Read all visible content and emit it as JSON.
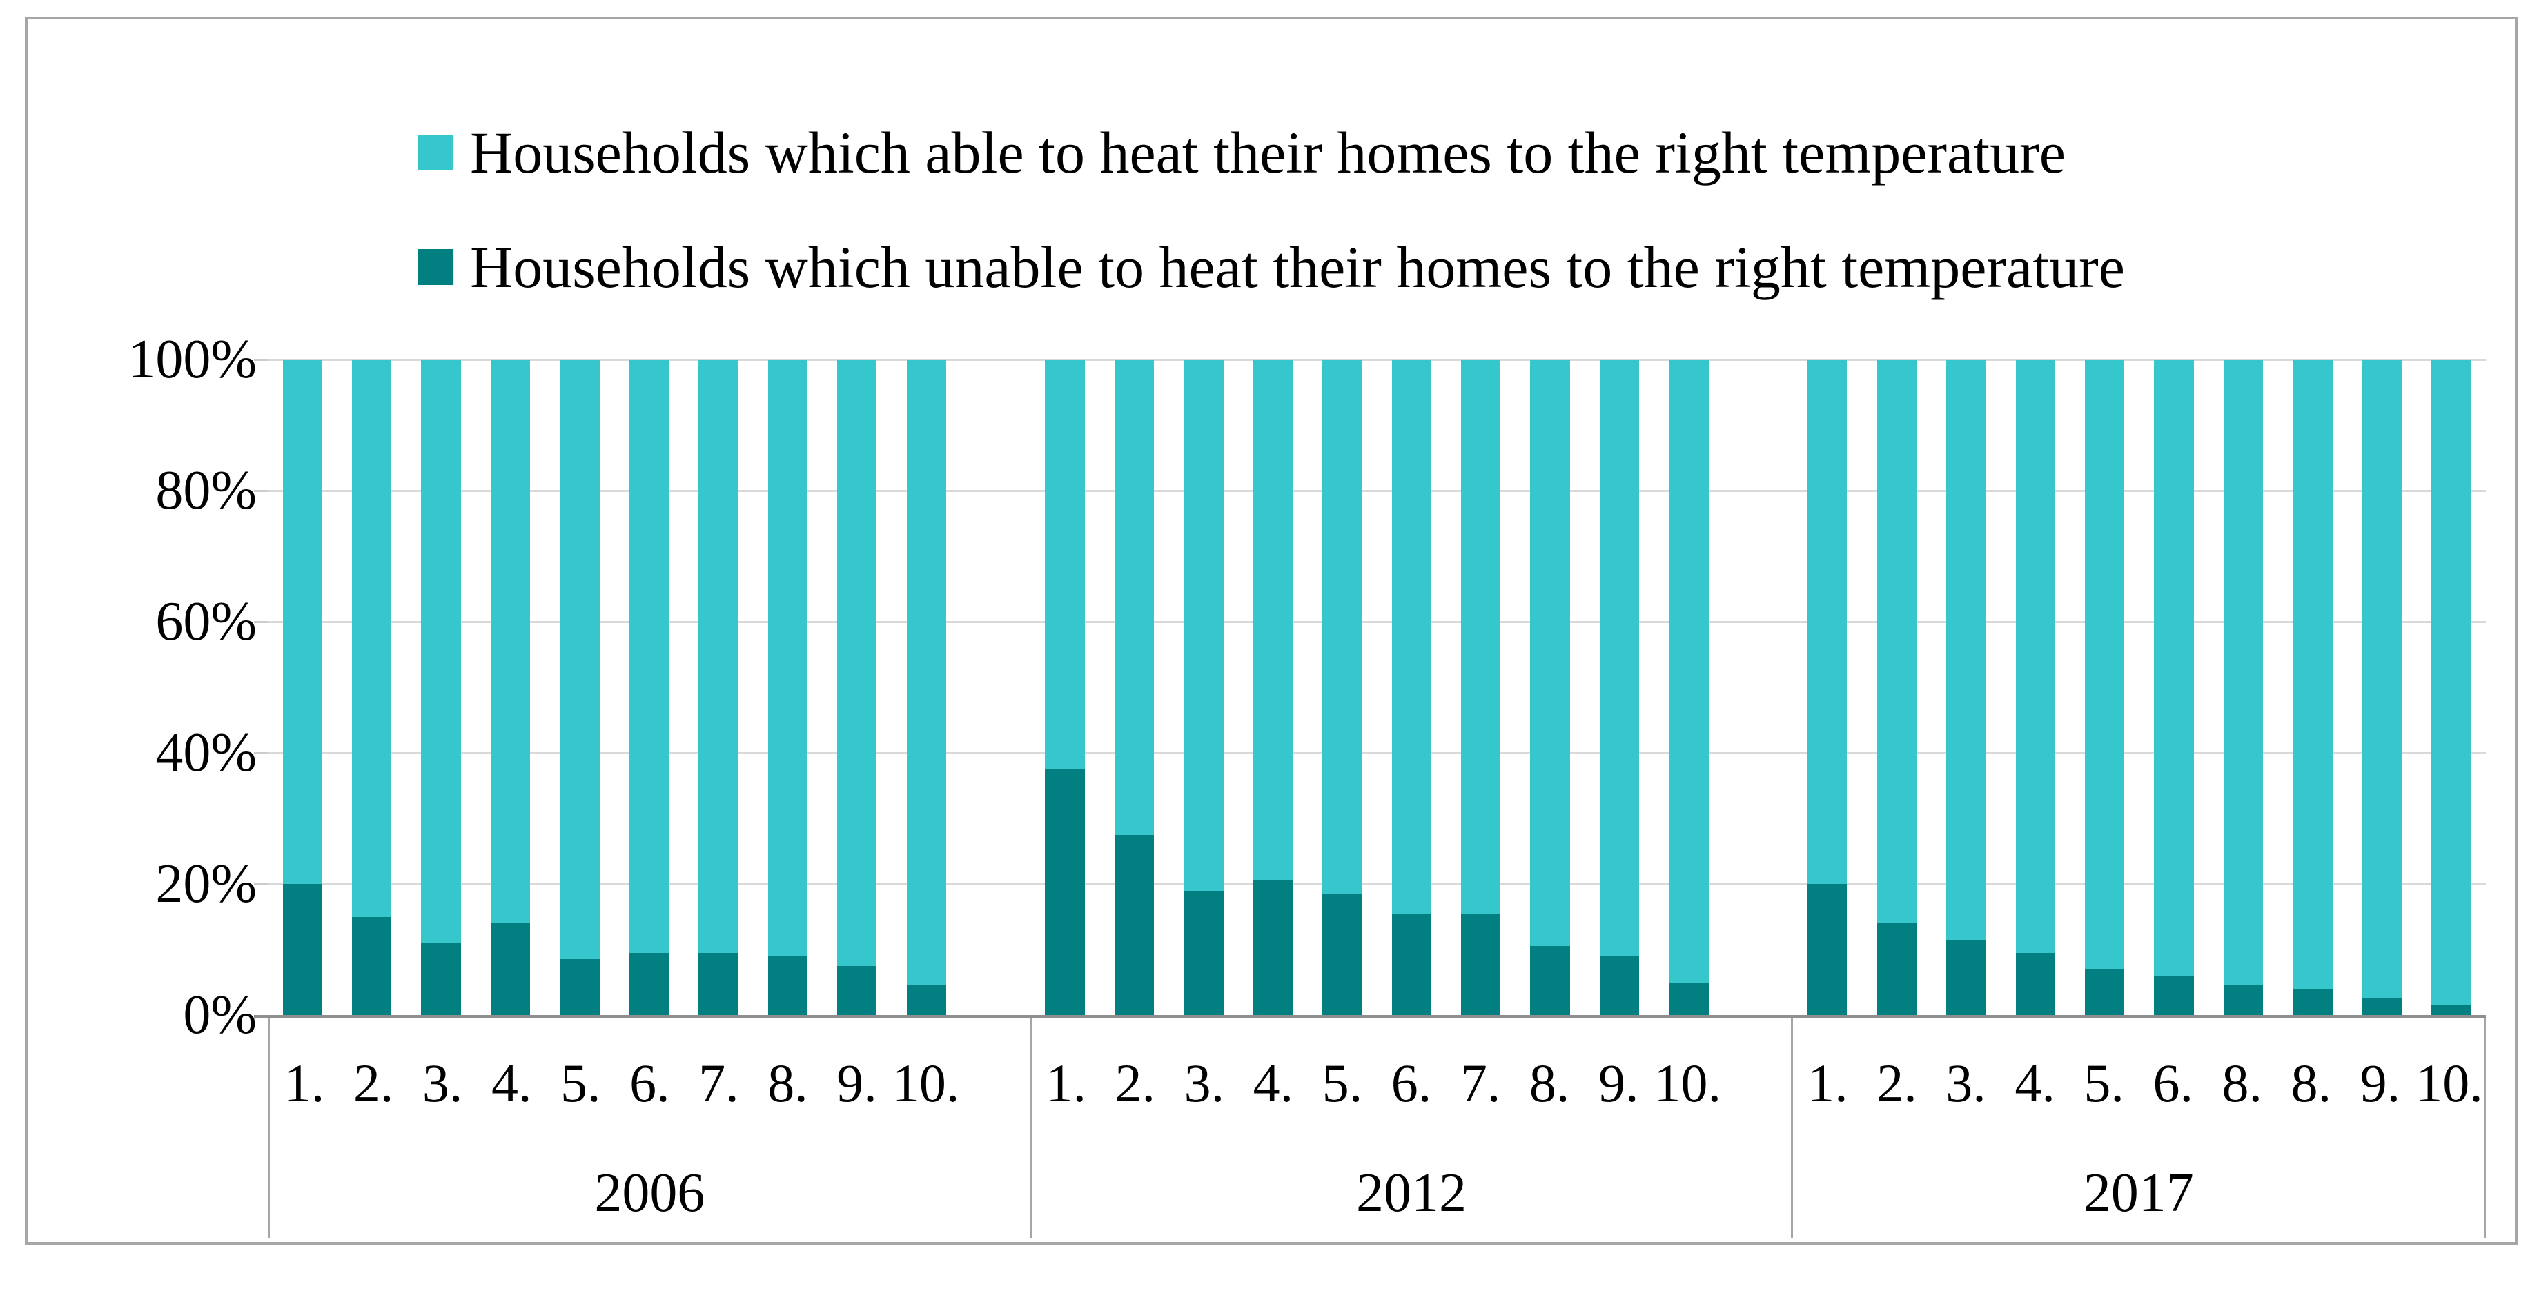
{
  "chart_data": {
    "type": "bar",
    "variant": "stacked-100-percent",
    "title": "",
    "xlabel": "",
    "ylabel": "",
    "unit": "percent",
    "ylim": [
      0,
      100
    ],
    "grid": true,
    "legend_position": "top",
    "y_ticks": [
      "100%",
      "80%",
      "60%",
      "40%",
      "20%",
      "0%"
    ],
    "legend": [
      {
        "label": "Households which able to heat their homes to the right temperature",
        "series": "able",
        "color": "#35c7cc"
      },
      {
        "label": "Households which unable to heat their homes to the right temperature",
        "series": "unable",
        "color": "#027f80"
      }
    ],
    "groups": [
      {
        "year": "2006",
        "categories": [
          "1.",
          "2.",
          "3.",
          "4.",
          "5.",
          "6.",
          "7.",
          "8.",
          "9.",
          "10."
        ],
        "series": [
          {
            "name": "unable",
            "values": [
              20,
              15,
              11,
              14,
              8.5,
              9.5,
              9.5,
              9,
              7.5,
              4.5
            ]
          },
          {
            "name": "able",
            "values": [
              80,
              85,
              89,
              86,
              91.5,
              90.5,
              90.5,
              91,
              92.5,
              95.5
            ]
          }
        ]
      },
      {
        "year": "2012",
        "categories": [
          "1.",
          "2.",
          "3.",
          "4.",
          "5.",
          "6.",
          "7.",
          "8.",
          "9.",
          "10."
        ],
        "series": [
          {
            "name": "unable",
            "values": [
              37.5,
              27.5,
              19,
              20.5,
              18.5,
              15.5,
              15.5,
              10.5,
              9,
              5
            ]
          },
          {
            "name": "able",
            "values": [
              62.5,
              72.5,
              81,
              79.5,
              81.5,
              84.5,
              84.5,
              89.5,
              91,
              95
            ]
          }
        ]
      },
      {
        "year": "2017",
        "categories": [
          "1.",
          "2.",
          "3.",
          "4.",
          "5.",
          "6.",
          "8.",
          "8.",
          "9.",
          "10."
        ],
        "series": [
          {
            "name": "unable",
            "values": [
              20,
              14,
              11.5,
              9.5,
              7,
              6,
              4.5,
              4,
              2.5,
              1.5
            ]
          },
          {
            "name": "able",
            "values": [
              80,
              86,
              88.5,
              90.5,
              93,
              94,
              95.5,
              96,
              97.5,
              98.5
            ]
          }
        ]
      }
    ],
    "colors": {
      "able": "#35c7cc",
      "unable": "#027f80",
      "gridline": "#d9d9d9",
      "axis_line": "#8f8f8f",
      "table_border": "#a6a6a6"
    }
  }
}
